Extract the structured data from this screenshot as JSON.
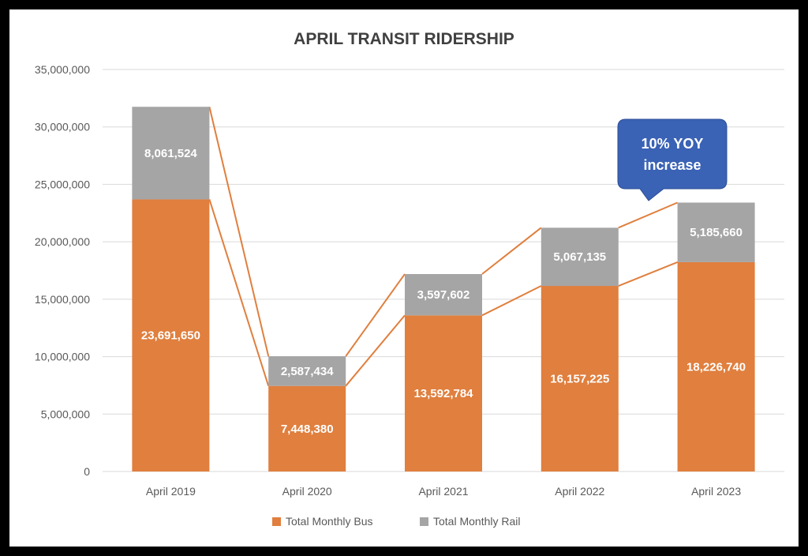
{
  "chart_data": {
    "type": "bar",
    "stacked": true,
    "title": "APRIL TRANSIT RIDERSHIP",
    "categories": [
      "April 2019",
      "April 2020",
      "April 2021",
      "April 2022",
      "April 2023"
    ],
    "series": [
      {
        "name": "Total Monthly Bus",
        "values": [
          23691650,
          7448380,
          13592784,
          16157225,
          18226740
        ],
        "labels": [
          "23,691,650",
          "7,448,380",
          "13,592,784",
          "16,157,225",
          "18,226,740"
        ],
        "color": "#E07F3E"
      },
      {
        "name": "Total Monthly Rail",
        "values": [
          8061524,
          2587434,
          3597602,
          5067135,
          5185660
        ],
        "labels": [
          "8,061,524",
          "2,587,434",
          "3,597,602",
          "5,067,135",
          "5,185,660"
        ],
        "color": "#A5A5A5"
      }
    ],
    "ylim": [
      0,
      35000000
    ],
    "yticks": [
      0,
      5000000,
      10000000,
      15000000,
      20000000,
      25000000,
      30000000,
      35000000
    ],
    "ytick_labels": [
      "0",
      "5,000,000",
      "10,000,000",
      "15,000,000",
      "20,000,000",
      "25,000,000",
      "30,000,000",
      "35,000,000"
    ],
    "grid": true,
    "legend_position": "bottom",
    "series_lines": true,
    "series_line_color": "#E07F3E",
    "annotation": {
      "line1": "10% YOY",
      "line2": "increase",
      "color": "#3A62B5",
      "points_to": "April 2023"
    }
  }
}
